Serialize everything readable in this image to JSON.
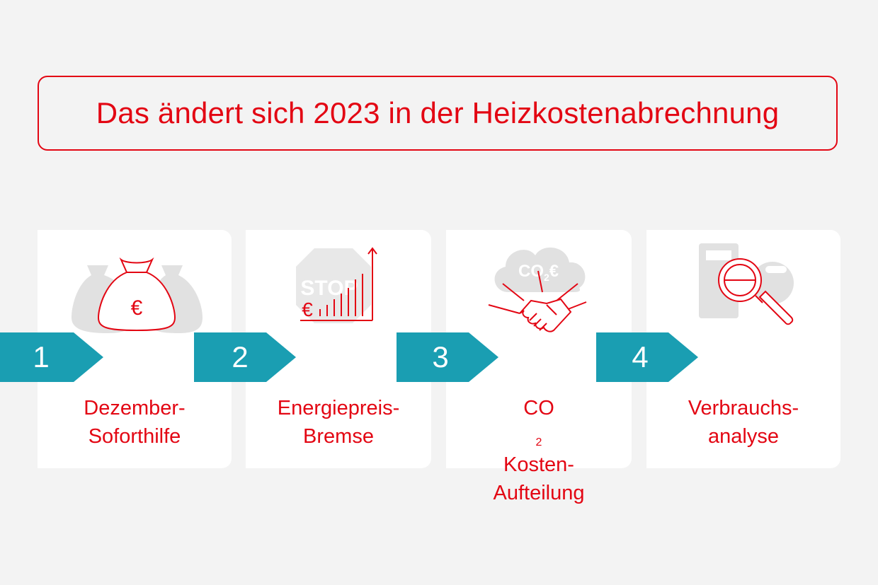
{
  "title": "Das ändert sich 2023 in der Heizkostenabrechnung",
  "steps": [
    {
      "number": "1",
      "label_lines": [
        "Dezember-",
        "Soforthilfe"
      ],
      "icon": "money-bag-euro-icon"
    },
    {
      "number": "2",
      "label_lines": [
        "Energiepreis-",
        "Bremse"
      ],
      "icon": "stop-sign-price-chart-icon",
      "icon_text_stop": "STOP",
      "icon_text_euro": "€"
    },
    {
      "number": "3",
      "label_line1_pre": "CO",
      "label_line1_sub": "2",
      "label_line1_post": " Kosten-",
      "label_line2": "Aufteilung",
      "icon": "co2-cloud-handshake-icon",
      "icon_text_co2": "CO",
      "icon_text_sub": "2",
      "icon_text_euro": "€"
    },
    {
      "number": "4",
      "label_lines": [
        "Verbrauchs-",
        "analyse"
      ],
      "icon": "magnifier-meter-icon"
    }
  ],
  "bag_text": "€",
  "colors": {
    "accent": "#e30613",
    "arrow": "#1a9eb2",
    "background": "#f3f3f3",
    "card": "#ffffff",
    "icon_gray": "#e1e1e1"
  }
}
